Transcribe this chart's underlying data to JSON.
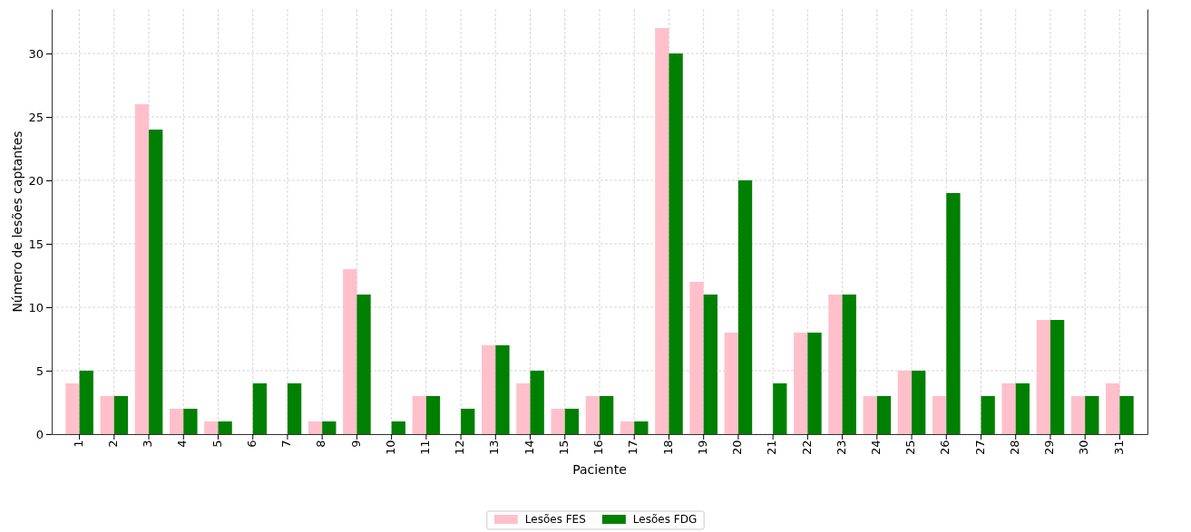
{
  "chart_data": {
    "type": "bar",
    "xlabel": "Paciente",
    "ylabel": "Número de lesões captantes",
    "categories": [
      "1",
      "2",
      "3",
      "4",
      "5",
      "6",
      "7",
      "8",
      "9",
      "10",
      "11",
      "12",
      "13",
      "14",
      "15",
      "16",
      "17",
      "18",
      "19",
      "20",
      "21",
      "22",
      "23",
      "24",
      "25",
      "26",
      "27",
      "28",
      "29",
      "30",
      "31"
    ],
    "series": [
      {
        "name": "Lesões FES",
        "color": "#ffc0cb",
        "values": [
          4,
          3,
          26,
          2,
          1,
          0,
          0,
          1,
          13,
          0,
          3,
          0,
          7,
          4,
          2,
          3,
          1,
          32,
          12,
          8,
          0,
          8,
          11,
          3,
          5,
          3,
          0,
          4,
          9,
          3,
          4
        ]
      },
      {
        "name": "Lesões FDG",
        "color": "#008000",
        "values": [
          5,
          3,
          24,
          2,
          1,
          4,
          4,
          1,
          11,
          1,
          3,
          2,
          7,
          5,
          2,
          3,
          1,
          30,
          11,
          20,
          4,
          8,
          11,
          3,
          5,
          19,
          3,
          4,
          9,
          3,
          3
        ]
      }
    ],
    "ylim": [
      0,
      33.5
    ],
    "yticks": [
      0,
      5,
      10,
      15,
      20,
      25,
      30
    ],
    "grid": true,
    "legend": "bottom"
  }
}
